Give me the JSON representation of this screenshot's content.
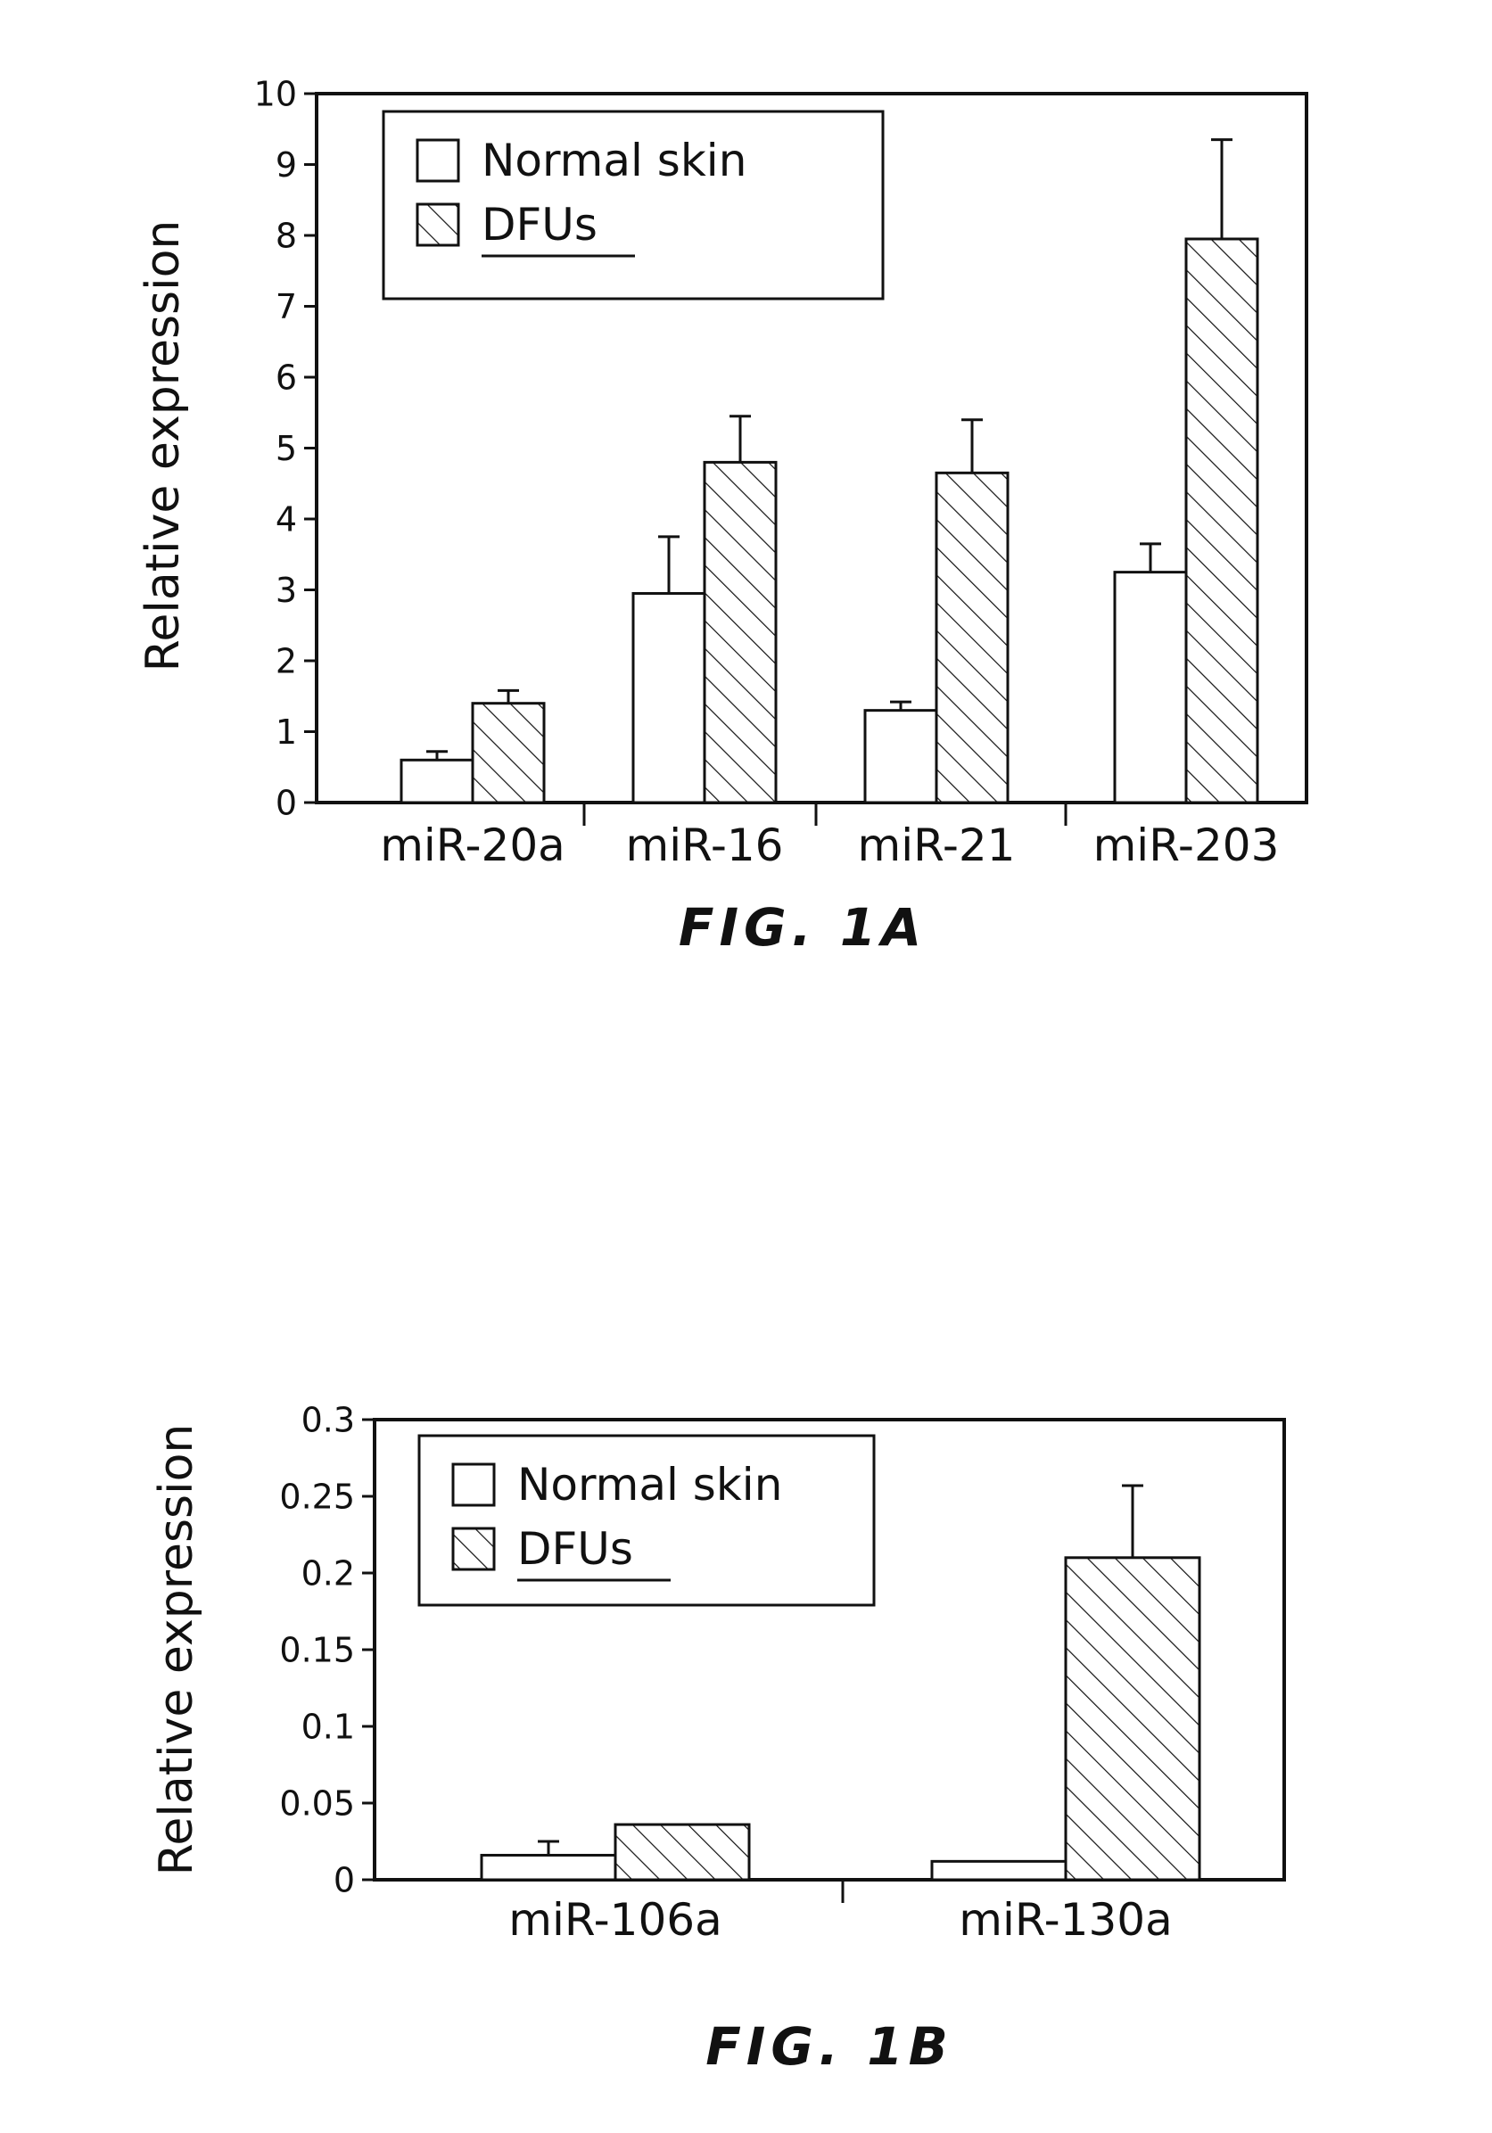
{
  "figures": [
    {
      "caption": "FIG. 1A",
      "chart_data": {
        "type": "bar",
        "categories": [
          "miR-20a",
          "miR-16",
          "miR-21",
          "miR-203"
        ],
        "series": [
          {
            "name": "Normal skin",
            "values": [
              0.6,
              2.95,
              1.3,
              3.25
            ],
            "errors": [
              0.12,
              0.8,
              0.12,
              0.4
            ],
            "pattern": "none"
          },
          {
            "name": "DFUs",
            "values": [
              1.4,
              4.8,
              4.65,
              7.95
            ],
            "errors": [
              0.18,
              0.65,
              0.75,
              1.4
            ],
            "pattern": "hatch"
          }
        ],
        "title": "",
        "xlabel": "",
        "ylabel": "Relative expression",
        "ylim": [
          0,
          10
        ],
        "yticks": [
          0,
          1,
          2,
          3,
          4,
          5,
          6,
          7,
          8,
          9,
          10
        ],
        "ytick_labels": [
          "0",
          "1",
          "2",
          "3",
          "4",
          "5",
          "6",
          "7",
          "8",
          "9",
          "10"
        ],
        "legend": "top-left",
        "grid": false
      }
    },
    {
      "caption": "FIG. 1B",
      "chart_data": {
        "type": "bar",
        "categories": [
          "miR-106a",
          "miR-130a"
        ],
        "series": [
          {
            "name": "Normal skin",
            "values": [
              0.016,
              0.012
            ],
            "errors": [
              0.009,
              0.0
            ],
            "pattern": "none"
          },
          {
            "name": "DFUs",
            "values": [
              0.036,
              0.21
            ],
            "errors": [
              0.0,
              0.047
            ],
            "pattern": "hatch"
          }
        ],
        "title": "",
        "xlabel": "",
        "ylabel": "Relative expression",
        "ylim": [
          0,
          0.3
        ],
        "yticks": [
          0,
          0.05,
          0.1,
          0.15,
          0.2,
          0.25,
          0.3
        ],
        "ytick_labels": [
          "0",
          "0.05",
          "0.1",
          "0.15",
          "0.2",
          "0.25",
          "0.3"
        ],
        "legend": "top-left",
        "grid": false
      }
    }
  ],
  "colors": {
    "ink": "#111111",
    "paper": "#ffffff"
  }
}
